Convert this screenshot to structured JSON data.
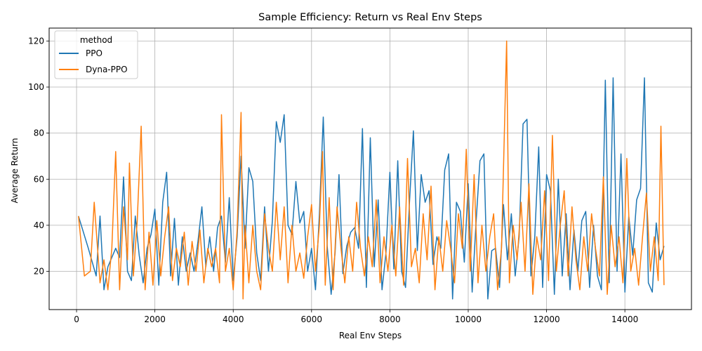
{
  "chart_data": {
    "type": "line",
    "title": "Sample Efficiency: Return vs Real Env Steps",
    "xlabel": "Real Env Steps",
    "ylabel": "Average Return",
    "xlim": [
      -700,
      15700
    ],
    "ylim": [
      3.4,
      125.6
    ],
    "xticks": [
      0,
      2000,
      4000,
      6000,
      8000,
      10000,
      12000,
      14000
    ],
    "xtick_labels": [
      "0",
      "2000",
      "4000",
      "6000",
      "8000",
      "10000",
      "12000",
      "14000"
    ],
    "yticks": [
      20,
      40,
      60,
      80,
      100,
      120
    ],
    "ytick_labels": [
      "20",
      "40",
      "60",
      "80",
      "100",
      "120"
    ],
    "grid": true,
    "legend": {
      "title": "method",
      "placement": "top-left"
    },
    "series": [
      {
        "name": "PPO",
        "color": "#1f77b4",
        "x": [
          50,
          300,
          500,
          600,
          700,
          800,
          1000,
          1100,
          1200,
          1300,
          1400,
          1500,
          1600,
          1700,
          1800,
          1900,
          2000,
          2100,
          2200,
          2300,
          2400,
          2500,
          2600,
          2700,
          2800,
          2900,
          3000,
          3100,
          3200,
          3300,
          3400,
          3500,
          3600,
          3700,
          3800,
          3900,
          4000,
          4100,
          4200,
          4300,
          4400,
          4500,
          4600,
          4700,
          4800,
          4900,
          5000,
          5100,
          5200,
          5300,
          5400,
          5500,
          5600,
          5700,
          5800,
          5900,
          6000,
          6100,
          6200,
          6300,
          6400,
          6500,
          6600,
          6700,
          6800,
          6900,
          7000,
          7100,
          7200,
          7300,
          7400,
          7500,
          7600,
          7700,
          7800,
          7900,
          8000,
          8100,
          8200,
          8300,
          8400,
          8500,
          8600,
          8700,
          8800,
          8900,
          9000,
          9100,
          9200,
          9300,
          9400,
          9500,
          9600,
          9700,
          9800,
          9900,
          10000,
          10100,
          10200,
          10300,
          10400,
          10500,
          10600,
          10700,
          10800,
          10900,
          11000,
          11100,
          11200,
          11300,
          11400,
          11500,
          11600,
          11700,
          11800,
          11900,
          12000,
          12100,
          12200,
          12300,
          12400,
          12500,
          12600,
          12700,
          12800,
          12900,
          13000,
          13100,
          13200,
          13300,
          13400,
          13500,
          13600,
          13700,
          13800,
          13900,
          14000,
          14100,
          14200,
          14300,
          14400,
          14500,
          14600,
          14700,
          14800,
          14900,
          15000
        ],
        "y": [
          44,
          30,
          18,
          44,
          12,
          22,
          30,
          26,
          61,
          20,
          16,
          44,
          27,
          15,
          30,
          36,
          47,
          14,
          50,
          63,
          18,
          43,
          14,
          35,
          20,
          28,
          20,
          33,
          48,
          22,
          35,
          20,
          39,
          44,
          24,
          52,
          16,
          35,
          70,
          30,
          65,
          59,
          28,
          16,
          48,
          20,
          42,
          85,
          76,
          88,
          40,
          36,
          59,
          41,
          46,
          20,
          30,
          12,
          45,
          87,
          31,
          10,
          28,
          62,
          19,
          31,
          37,
          39,
          30,
          82,
          13,
          78,
          22,
          51,
          12,
          28,
          63,
          21,
          68,
          20,
          13,
          50,
          81,
          29,
          62,
          50,
          55,
          23,
          35,
          30,
          64,
          71,
          8,
          50,
          46,
          24,
          58,
          11,
          41,
          68,
          71,
          8,
          29,
          30,
          13,
          49,
          25,
          45,
          18,
          35,
          84,
          86,
          18,
          35,
          74,
          13,
          62,
          55,
          10,
          60,
          18,
          45,
          12,
          38,
          20,
          42,
          46,
          13,
          40,
          18,
          12,
          103,
          15,
          104,
          20,
          71,
          11,
          44,
          27,
          51,
          56,
          104,
          15,
          11,
          41,
          25,
          31
        ]
      },
      {
        "name": "Dyna-PPO",
        "color": "#ff7f0e",
        "x": [
          50,
          200,
          350,
          450,
          600,
          700,
          800,
          900,
          1000,
          1100,
          1200,
          1300,
          1350,
          1450,
          1550,
          1650,
          1750,
          1850,
          1950,
          2050,
          2150,
          2250,
          2350,
          2450,
          2550,
          2650,
          2750,
          2850,
          2950,
          3050,
          3150,
          3250,
          3350,
          3450,
          3550,
          3650,
          3700,
          3800,
          3900,
          4000,
          4100,
          4200,
          4250,
          4300,
          4400,
          4500,
          4600,
          4700,
          4800,
          4900,
          5000,
          5100,
          5200,
          5300,
          5400,
          5500,
          5600,
          5700,
          5800,
          5900,
          6000,
          6100,
          6200,
          6280,
          6350,
          6450,
          6550,
          6650,
          6750,
          6850,
          6950,
          7050,
          7150,
          7250,
          7350,
          7450,
          7550,
          7650,
          7750,
          7850,
          7950,
          8050,
          8150,
          8250,
          8350,
          8450,
          8550,
          8650,
          8750,
          8850,
          8950,
          9050,
          9150,
          9250,
          9350,
          9450,
          9550,
          9650,
          9750,
          9850,
          9950,
          10050,
          10150,
          10250,
          10350,
          10450,
          10550,
          10650,
          10750,
          10850,
          10980,
          11050,
          11150,
          11250,
          11350,
          11450,
          11550,
          11650,
          11750,
          11850,
          11950,
          12050,
          12150,
          12250,
          12350,
          12450,
          12550,
          12650,
          12750,
          12850,
          12950,
          13050,
          13150,
          13250,
          13350,
          13450,
          13550,
          13650,
          13750,
          13850,
          13950,
          14050,
          14150,
          14250,
          14350,
          14450,
          14550,
          14650,
          14750,
          14850,
          14920,
          15000
        ],
        "y": [
          44,
          18,
          20,
          50,
          15,
          25,
          12,
          30,
          72,
          12,
          48,
          25,
          67,
          18,
          42,
          83,
          12,
          37,
          14,
          42,
          18,
          35,
          48,
          16,
          30,
          22,
          37,
          14,
          33,
          20,
          38,
          15,
          30,
          22,
          30,
          15,
          88,
          20,
          30,
          12,
          38,
          89,
          8,
          40,
          15,
          40,
          20,
          12,
          45,
          30,
          20,
          50,
          25,
          48,
          15,
          40,
          20,
          28,
          17,
          35,
          49,
          20,
          40,
          72,
          14,
          52,
          12,
          48,
          30,
          15,
          35,
          20,
          50,
          30,
          18,
          35,
          22,
          51,
          15,
          35,
          20,
          40,
          18,
          48,
          14,
          69,
          22,
          30,
          15,
          45,
          25,
          57,
          12,
          35,
          20,
          42,
          30,
          15,
          45,
          30,
          73,
          20,
          62,
          15,
          40,
          20,
          35,
          45,
          12,
          30,
          120,
          15,
          40,
          25,
          50,
          20,
          58,
          10,
          35,
          25,
          55,
          16,
          79,
          20,
          40,
          55,
          18,
          48,
          25,
          12,
          35,
          20,
          45,
          30,
          18,
          61,
          10,
          40,
          22,
          35,
          15,
          69,
          20,
          30,
          14,
          35,
          54,
          20,
          35,
          16,
          83,
          14
        ]
      }
    ]
  }
}
